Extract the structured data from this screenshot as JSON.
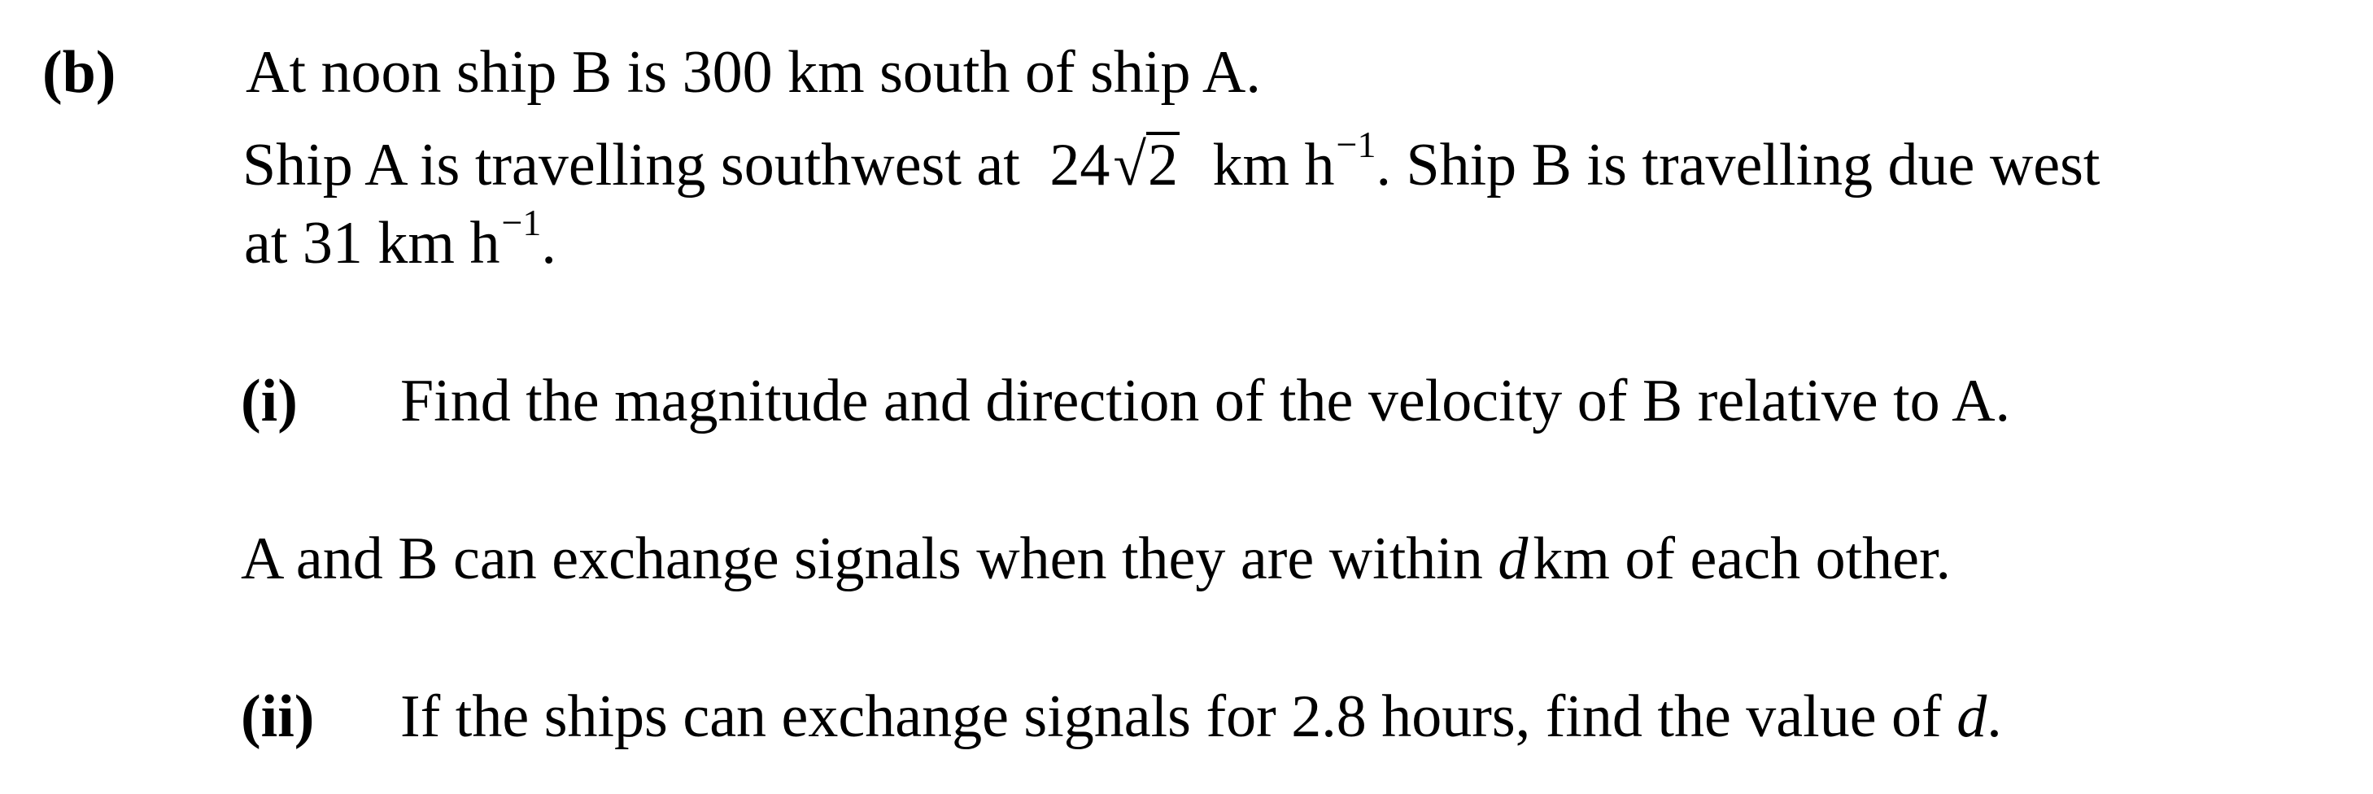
{
  "part_label": "(b)",
  "intro": {
    "line1": "At noon ship B is 300 km south of ship A.",
    "line2_a": "Ship A is travelling southwest at",
    "line2_coef": "24",
    "line2_radical": "√",
    "line2_radicand": "2",
    "line2_unit": "km h",
    "line2_exp": "−1",
    "line2_b": ". Ship B is travelling due west",
    "line3_a": "at 31 km h",
    "line3_exp": "−1",
    "line3_b": "."
  },
  "sub_i": {
    "label": "(i)",
    "text": "Find the magnitude and direction of the velocity of B relative to A."
  },
  "condition": {
    "text_a": "A and B can exchange signals when they are within",
    "var": "d",
    "text_b": "km of each other."
  },
  "sub_ii": {
    "label": "(ii)",
    "text_a": "If the ships can exchange signals for 2.8 hours, find the value of",
    "var": "d",
    "text_b": "."
  }
}
